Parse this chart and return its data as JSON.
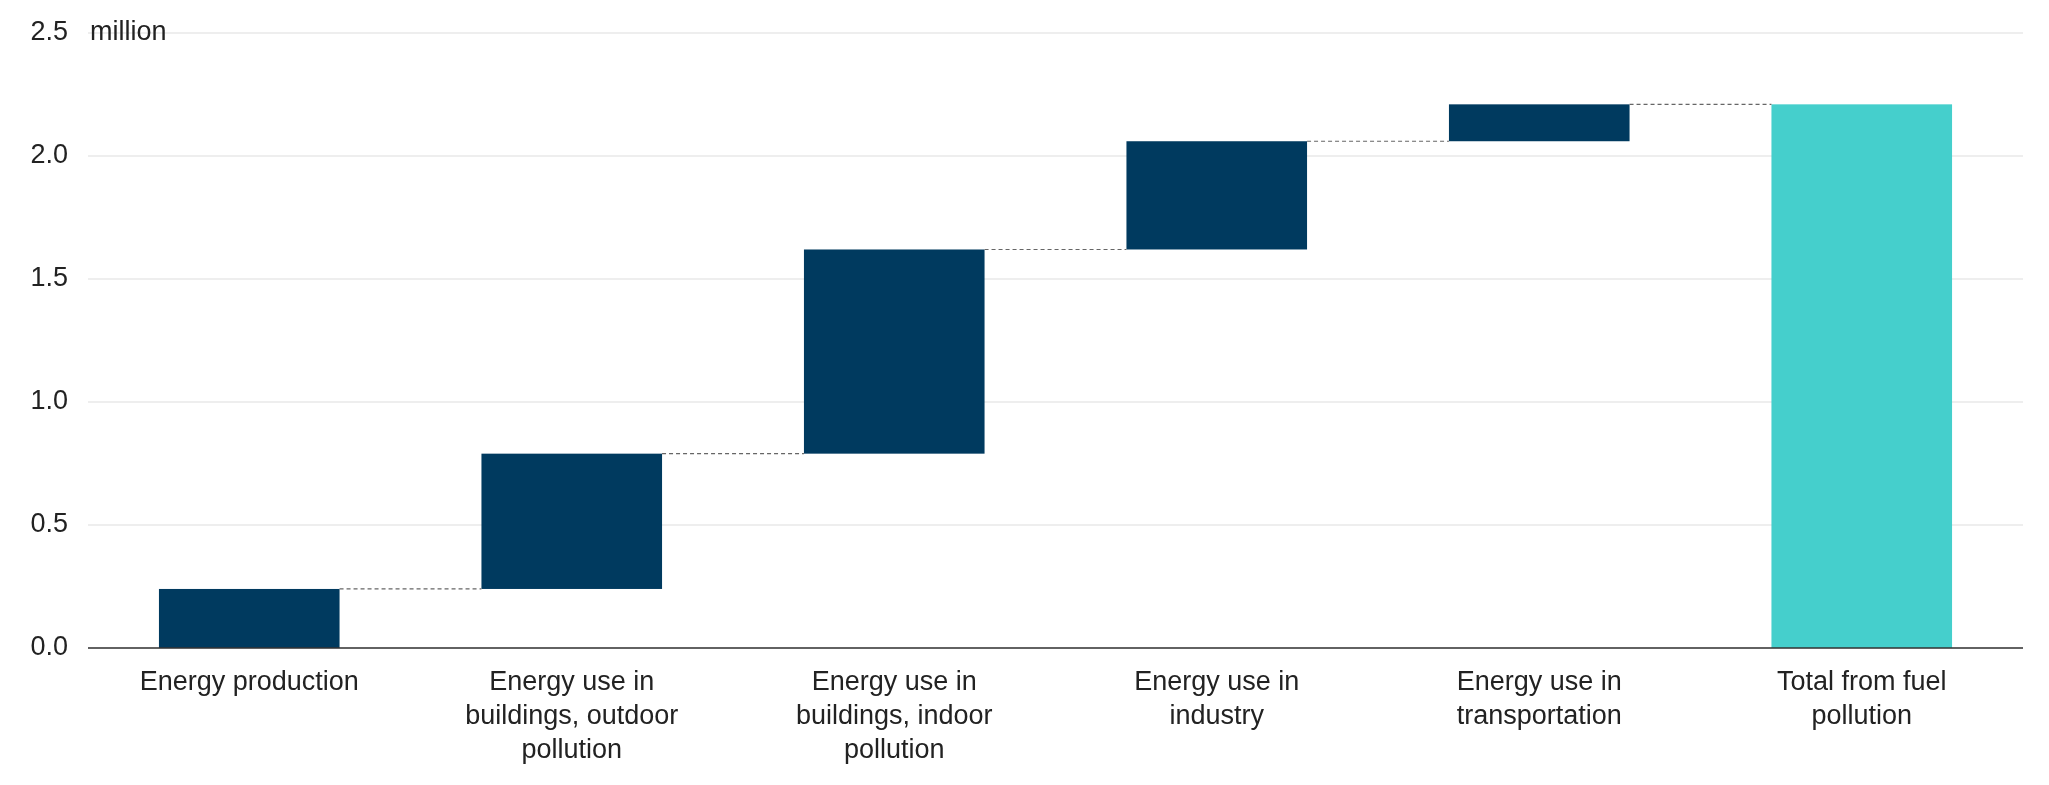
{
  "chart_data": {
    "type": "bar",
    "ylabel": "million",
    "categories": [
      "Energy production",
      "Energy use in buildings, outdoor pollution",
      "Energy use in buildings, indoor pollution",
      "Energy use in industry",
      "Energy use in transportation",
      "Total from fuel pollution"
    ],
    "values": [
      0.24,
      0.55,
      0.83,
      0.44,
      0.15,
      2.21
    ],
    "base": [
      0,
      0.24,
      0.79,
      1.62,
      2.06,
      0
    ],
    "colors": [
      "#003a5f",
      "#003a5f",
      "#003a5f",
      "#003a5f",
      "#003a5f",
      "#45cfcc"
    ],
    "ylim": [
      0,
      2.5
    ],
    "yticks": [
      {
        "value": 0,
        "label": "0.0"
      },
      {
        "value": 0.5,
        "label": "0.5"
      },
      {
        "value": 1,
        "label": "1.0"
      },
      {
        "value": 1.5,
        "label": "1.5"
      },
      {
        "value": 2,
        "label": "2.0"
      },
      {
        "value": 2.5,
        "label": "2.5"
      }
    ],
    "grid": "y"
  }
}
